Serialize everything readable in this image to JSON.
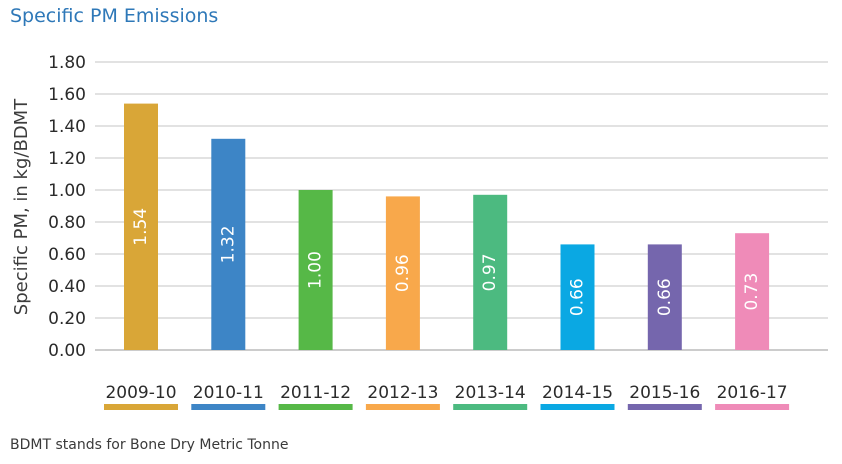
{
  "chart_data": {
    "type": "bar",
    "title": "Specific PM Emissions",
    "ylabel": "Specific PM, in kg/BDMT",
    "ylim": [
      0,
      1.8
    ],
    "yticks": [
      "0.00",
      "0.20",
      "0.40",
      "0.60",
      "0.80",
      "1.00",
      "1.20",
      "1.40",
      "1.60",
      "1.80"
    ],
    "grid": true,
    "categories": [
      "2009-10",
      "2010-11",
      "2011-12",
      "2012-13",
      "2013-14",
      "2014-15",
      "2015-16",
      "2016-17"
    ],
    "values": [
      1.54,
      1.32,
      1.0,
      0.96,
      0.97,
      0.66,
      0.66,
      0.73
    ],
    "value_labels": [
      "1.54",
      "1.32",
      "1.00",
      "0.96",
      "0.97",
      "0.66",
      "0.66",
      "0.73"
    ],
    "colors": [
      "#d9a637",
      "#3d85c6",
      "#56b847",
      "#f8a84b",
      "#4cba80",
      "#0aa8e3",
      "#7566ad",
      "#ef8bb8"
    ]
  },
  "footnote": "BDMT stands for Bone Dry Metric Tonne"
}
